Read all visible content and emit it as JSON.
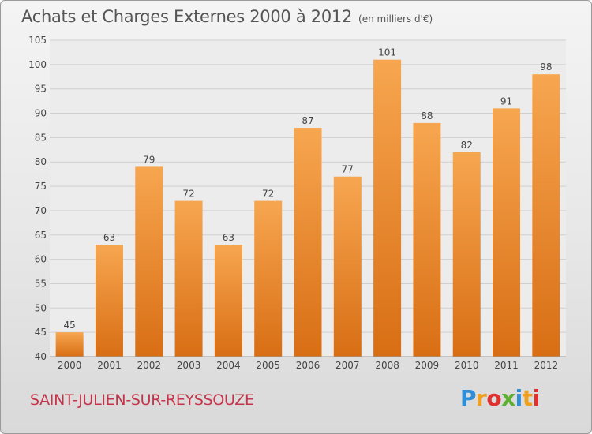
{
  "header": {
    "title": "Achats et Charges Externes 2000 à 2012",
    "unit": "(en milliers d'€)"
  },
  "footer": {
    "city": "SAINT-JULIEN-SUR-REYSSOUZE",
    "logo": {
      "letters": [
        "P",
        "r",
        "o",
        "x",
        "i",
        "t",
        "i"
      ],
      "colors": [
        "#2e8fd8",
        "#f0a020",
        "#e03030",
        "#5db030",
        "#2e8fd8",
        "#f0a020",
        "#e03030"
      ]
    }
  },
  "colors": {
    "bar_top": "#f7a650",
    "bar_bottom": "#d86e14",
    "grid": "#cfcfcf",
    "axis_text": "#444444",
    "label_text": "#444444"
  },
  "chart_data": {
    "type": "bar",
    "categories": [
      "2000",
      "2001",
      "2002",
      "2003",
      "2004",
      "2005",
      "2006",
      "2007",
      "2008",
      "2009",
      "2010",
      "2011",
      "2012"
    ],
    "values": [
      45,
      63,
      79,
      72,
      63,
      72,
      87,
      77,
      101,
      88,
      82,
      91,
      98
    ],
    "ylim": [
      40,
      105
    ],
    "yticks": [
      40,
      45,
      50,
      55,
      60,
      65,
      70,
      75,
      80,
      85,
      90,
      95,
      100,
      105
    ],
    "grid": true,
    "legend": "none"
  }
}
